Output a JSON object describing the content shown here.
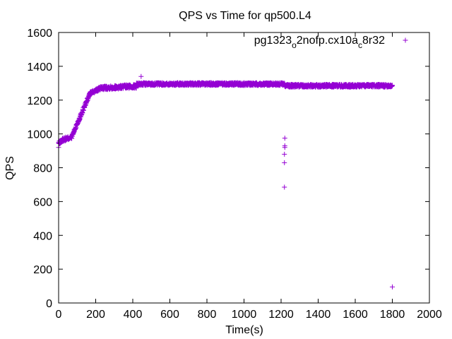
{
  "chart_data": {
    "type": "scatter",
    "title": "QPS vs Time for qp500.L4",
    "xlabel": "Time(s)",
    "ylabel": "QPS",
    "xlim": [
      0,
      2000
    ],
    "ylim": [
      0,
      1600
    ],
    "xticks": [
      0,
      200,
      400,
      600,
      800,
      1000,
      1200,
      1400,
      1600,
      1800,
      2000
    ],
    "yticks": [
      0,
      200,
      400,
      600,
      800,
      1000,
      1200,
      1400,
      1600
    ],
    "grid": false,
    "legend_position": "top-right",
    "marker": "+",
    "color": "#9400d3",
    "series": [
      {
        "legend_parts": {
          "a": "pg1323",
          "b": "o",
          "c": "2nofp.cx10a",
          "d": "c",
          "e": "8r32"
        },
        "segments": [
          {
            "x_start": 0,
            "x_end": 20,
            "y_start": 945,
            "y_end": 960,
            "step": 1,
            "noise": 20
          },
          {
            "x_start": 20,
            "x_end": 70,
            "y_start": 965,
            "y_end": 980,
            "step": 1,
            "noise": 22
          },
          {
            "x_start": 70,
            "x_end": 100,
            "y_start": 980,
            "y_end": 1060,
            "step": 1,
            "noise": 20
          },
          {
            "x_start": 100,
            "x_end": 170,
            "y_start": 1060,
            "y_end": 1240,
            "step": 1,
            "noise": 22
          },
          {
            "x_start": 170,
            "x_end": 230,
            "y_start": 1240,
            "y_end": 1272,
            "step": 1,
            "noise": 18
          },
          {
            "x_start": 230,
            "x_end": 420,
            "y_start": 1272,
            "y_end": 1282,
            "step": 1,
            "noise": 22
          },
          {
            "x_start": 420,
            "x_end": 1220,
            "y_start": 1295,
            "y_end": 1295,
            "step": 1,
            "noise": 16
          },
          {
            "x_start": 1220,
            "x_end": 1800,
            "y_start": 1285,
            "y_end": 1285,
            "step": 1,
            "noise": 16
          }
        ],
        "points": [
          {
            "x": 0,
            "y": 920
          },
          {
            "x": 445,
            "y": 1340
          },
          {
            "x": 1220,
            "y": 975
          },
          {
            "x": 1220,
            "y": 930
          },
          {
            "x": 1220,
            "y": 920
          },
          {
            "x": 1218,
            "y": 880
          },
          {
            "x": 1218,
            "y": 830
          },
          {
            "x": 1218,
            "y": 685
          },
          {
            "x": 1800,
            "y": 95
          }
        ]
      }
    ]
  }
}
